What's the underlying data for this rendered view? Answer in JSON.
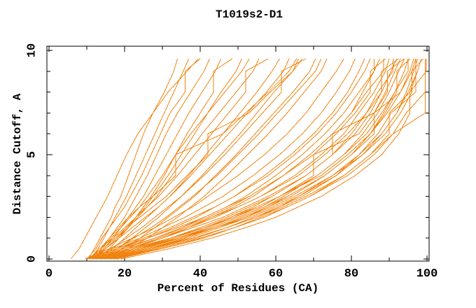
{
  "chart_data": {
    "type": "line",
    "title": "T1019s2-D1",
    "xlabel": "Percent of Residues (CA)",
    "ylabel": "Distance Cutoff, A",
    "xlim": [
      0,
      100
    ],
    "ylim": [
      0,
      10
    ],
    "x_ticks_major": [
      0,
      20,
      40,
      60,
      80,
      100
    ],
    "x_ticks_minor": [
      10,
      30,
      50,
      70,
      90
    ],
    "y_ticks_major": [
      0,
      5,
      10
    ],
    "y_ticks_minor": [
      1,
      2,
      3,
      4,
      6,
      7,
      8,
      9
    ],
    "grid": "off",
    "legend": "none",
    "line_color": "#f08410",
    "axis_color": "#000000",
    "y_grid": [
      0,
      0.5,
      1,
      1.5,
      2,
      2.5,
      3,
      4,
      5,
      6,
      7,
      8,
      9,
      9.6
    ],
    "series": [
      [
        5.8,
        8,
        9.5,
        11,
        12.5,
        14,
        15.5,
        18,
        20.5,
        23.5,
        27.5,
        31.5,
        36.5,
        39.5
      ],
      [
        10.5,
        12,
        13.5,
        15,
        16.5,
        17.5,
        19,
        21,
        23,
        25,
        27.5,
        30.5,
        33,
        34
      ],
      [
        11,
        13,
        14.5,
        16,
        17.5,
        19,
        20.5,
        23,
        25.5,
        28,
        30.5,
        33,
        35.5,
        37
      ],
      [
        10,
        12.5,
        14,
        16,
        18,
        20,
        21.5,
        24.5,
        27,
        29.5,
        32,
        36,
        36,
        40
      ],
      [
        12,
        14,
        16,
        18,
        20,
        21.5,
        23,
        26,
        28.5,
        31,
        34,
        37.5,
        41,
        42.5
      ],
      [
        11.5,
        14.5,
        17,
        19,
        21,
        23,
        25,
        28,
        31,
        34,
        37,
        40.5,
        44,
        45.5
      ],
      [
        13,
        16,
        18.5,
        21,
        23,
        25,
        27,
        30.5,
        33.5,
        36.5,
        40,
        43.5,
        43.5,
        48.5
      ],
      [
        12.5,
        15,
        18,
        20.5,
        23,
        25.5,
        27.5,
        31.5,
        35,
        38.5,
        42,
        45.5,
        49.5,
        51
      ],
      [
        11,
        14,
        16.5,
        19,
        21.5,
        24,
        26,
        30,
        33.5,
        37.5,
        42,
        46.5,
        51,
        53
      ],
      [
        12,
        15,
        18,
        21,
        23.5,
        26,
        28.5,
        32.5,
        36.5,
        40.5,
        45,
        49.5,
        54,
        55.5
      ],
      [
        10.5,
        13.5,
        17,
        20,
        23,
        26,
        29,
        34,
        38.5,
        43,
        47.5,
        52,
        52,
        58
      ],
      [
        13,
        17,
        20,
        23,
        26,
        29,
        32,
        37,
        41.5,
        46,
        50.5,
        55,
        59,
        61
      ],
      [
        11.5,
        15,
        18.5,
        22,
        25.5,
        29,
        32,
        37.5,
        42.5,
        47.5,
        52.5,
        57.5,
        62,
        63.5
      ],
      [
        14,
        18,
        22,
        25.5,
        29,
        32,
        35,
        40.5,
        45.5,
        50.5,
        55,
        59.5,
        64.5,
        66
      ],
      [
        12.5,
        16.5,
        20.5,
        24.5,
        28,
        31.5,
        35,
        41,
        46.5,
        51.5,
        56.5,
        61.5,
        61.5,
        68
      ],
      [
        15,
        19.5,
        24,
        28,
        31.5,
        35,
        38.5,
        44,
        49.5,
        54.5,
        59.5,
        64.5,
        69,
        70.5
      ],
      [
        13.5,
        18,
        22.5,
        27,
        31,
        34.5,
        38,
        44.5,
        50,
        55.5,
        60.5,
        65.5,
        70.5,
        72
      ],
      [
        16,
        21,
        26,
        30,
        34,
        37.5,
        41,
        47,
        52.5,
        58,
        63,
        67.5,
        72,
        73.5
      ],
      [
        11,
        13.5,
        16,
        18.5,
        21,
        24,
        27.5,
        33.5,
        33.5,
        46,
        52,
        58,
        63.5,
        65.5
      ],
      [
        12,
        14.5,
        17.5,
        20.5,
        24,
        27.5,
        31,
        36.5,
        42,
        42,
        53,
        58.5,
        64.5,
        67
      ],
      [
        9.5,
        16,
        22,
        28,
        33,
        38,
        42,
        50,
        57,
        63,
        68,
        72,
        76,
        78
      ],
      [
        10,
        17,
        24,
        30,
        36,
        41,
        46,
        54,
        61,
        67,
        72,
        76,
        79.5,
        81
      ],
      [
        11,
        19,
        26,
        33,
        39,
        44,
        49,
        57,
        64,
        70,
        75,
        79,
        82,
        83.5
      ],
      [
        12,
        20,
        28,
        35,
        41,
        47,
        52,
        60,
        67,
        73,
        78,
        82,
        86,
        86
      ],
      [
        10.5,
        18,
        25,
        32,
        38,
        44,
        49,
        58,
        65,
        71,
        76,
        80,
        83.5,
        85
      ],
      [
        13,
        22,
        30,
        37,
        43,
        49,
        54,
        62,
        69,
        75,
        80,
        83,
        86,
        87.5
      ],
      [
        11.5,
        20,
        28,
        35,
        42,
        48,
        53,
        62,
        69,
        75,
        80,
        84,
        88.5,
        88.5
      ],
      [
        12.5,
        21,
        29,
        37,
        44,
        50,
        56,
        65,
        72,
        78,
        82,
        86,
        89,
        90
      ],
      [
        14,
        24,
        33,
        41,
        48,
        54,
        59,
        68,
        75,
        80,
        84,
        87,
        91,
        91
      ],
      [
        10,
        18,
        26,
        34,
        41,
        47,
        53,
        62,
        70,
        76,
        81,
        85,
        85,
        89
      ],
      [
        13.5,
        23,
        32,
        40,
        47,
        53,
        59,
        68,
        75,
        81,
        85,
        88,
        90.5,
        92
      ],
      [
        15,
        25,
        34,
        42,
        49,
        56,
        61,
        70,
        70,
        82,
        86,
        89,
        91.5,
        93
      ],
      [
        11,
        19,
        28,
        36,
        43,
        50,
        56,
        66,
        73,
        79,
        84,
        88,
        88,
        92.5
      ],
      [
        14.5,
        25,
        35,
        43,
        50,
        57,
        62,
        71,
        78,
        83,
        87,
        90,
        92.5,
        94
      ],
      [
        16,
        27,
        37,
        45,
        52,
        58,
        64,
        73,
        80,
        85,
        88.5,
        91.5,
        95,
        95
      ],
      [
        12,
        21,
        30,
        38,
        46,
        52,
        58,
        68,
        75,
        75,
        86,
        89.5,
        89.5,
        94
      ],
      [
        15.5,
        26,
        36,
        44,
        51,
        58,
        63,
        73,
        80,
        85,
        89,
        92,
        92,
        95.5
      ],
      [
        13,
        23,
        33,
        41,
        49,
        55,
        61,
        71,
        78,
        84,
        88,
        91.5,
        94,
        95
      ],
      [
        17,
        29,
        39,
        47,
        55,
        61,
        66,
        76,
        82,
        87,
        90.5,
        97,
        97,
        97
      ],
      [
        14,
        24,
        34,
        43,
        50,
        57,
        63,
        73,
        80,
        86,
        86,
        93,
        95.5,
        96.5
      ],
      [
        16.5,
        28,
        38,
        47,
        54,
        61,
        67,
        76,
        83,
        88,
        92,
        94.5,
        96.5,
        97.5
      ],
      [
        12.5,
        22,
        32,
        41,
        48,
        55,
        61,
        72,
        79,
        85,
        89.5,
        93,
        96,
        97
      ],
      [
        18,
        30,
        41,
        49,
        57,
        63,
        69,
        78,
        85,
        90,
        90,
        95.5,
        97.5,
        98.5
      ],
      [
        15,
        26,
        37,
        45,
        53,
        60,
        66,
        75,
        82,
        88,
        92,
        95,
        97.5,
        98.5
      ],
      [
        17.5,
        30,
        40,
        49,
        56,
        63,
        69,
        79,
        86,
        91,
        94.5,
        99.5,
        99.5,
        99.5
      ],
      [
        13.5,
        24,
        35,
        44,
        52,
        59,
        65,
        75,
        83,
        89,
        93,
        96,
        96,
        99
      ],
      [
        19,
        32,
        43,
        52,
        60,
        66,
        72,
        81,
        88,
        92.5,
        95.5,
        95.5,
        99.8,
        99.8
      ],
      [
        16,
        27,
        38,
        47,
        55,
        62,
        68,
        78,
        85,
        91,
        99.5,
        99.5,
        99.5,
        99.5
      ]
    ]
  }
}
